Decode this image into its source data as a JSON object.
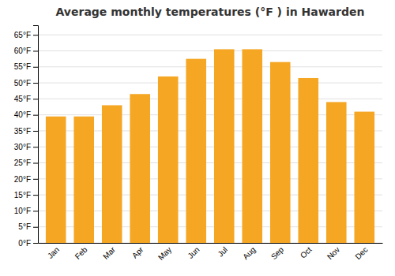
{
  "chart_data": {
    "type": "bar",
    "title": "Average monthly temperatures (°F ) in Hawarden",
    "categories": [
      "Jan",
      "Feb",
      "Mar",
      "Apr",
      "May",
      "Jun",
      "Jul",
      "Aug",
      "Sep",
      "Oct",
      "Nov",
      "Dec"
    ],
    "values": [
      39.5,
      39.5,
      43.0,
      46.5,
      52.0,
      57.5,
      60.5,
      60.5,
      56.5,
      51.5,
      44.0,
      41.0
    ],
    "color": "#F5A623",
    "ylim": [
      0,
      68
    ],
    "yticks": [
      {
        "value": 0,
        "label": "0°F"
      },
      {
        "value": 5,
        "label": "5°F"
      },
      {
        "value": 10,
        "label": "10°F"
      },
      {
        "value": 15,
        "label": "15°F"
      },
      {
        "value": 20,
        "label": "20°F"
      },
      {
        "value": 25,
        "label": "25°F"
      },
      {
        "value": 30,
        "label": "30°F"
      },
      {
        "value": 35,
        "label": "35°F"
      },
      {
        "value": 40,
        "label": "40°F"
      },
      {
        "value": 45,
        "label": "45°F"
      },
      {
        "value": 50,
        "label": "50°F"
      },
      {
        "value": 55,
        "label": "55°F"
      },
      {
        "value": 60,
        "label": "60°F"
      },
      {
        "value": 65,
        "label": "65°F"
      }
    ],
    "grid": true
  }
}
